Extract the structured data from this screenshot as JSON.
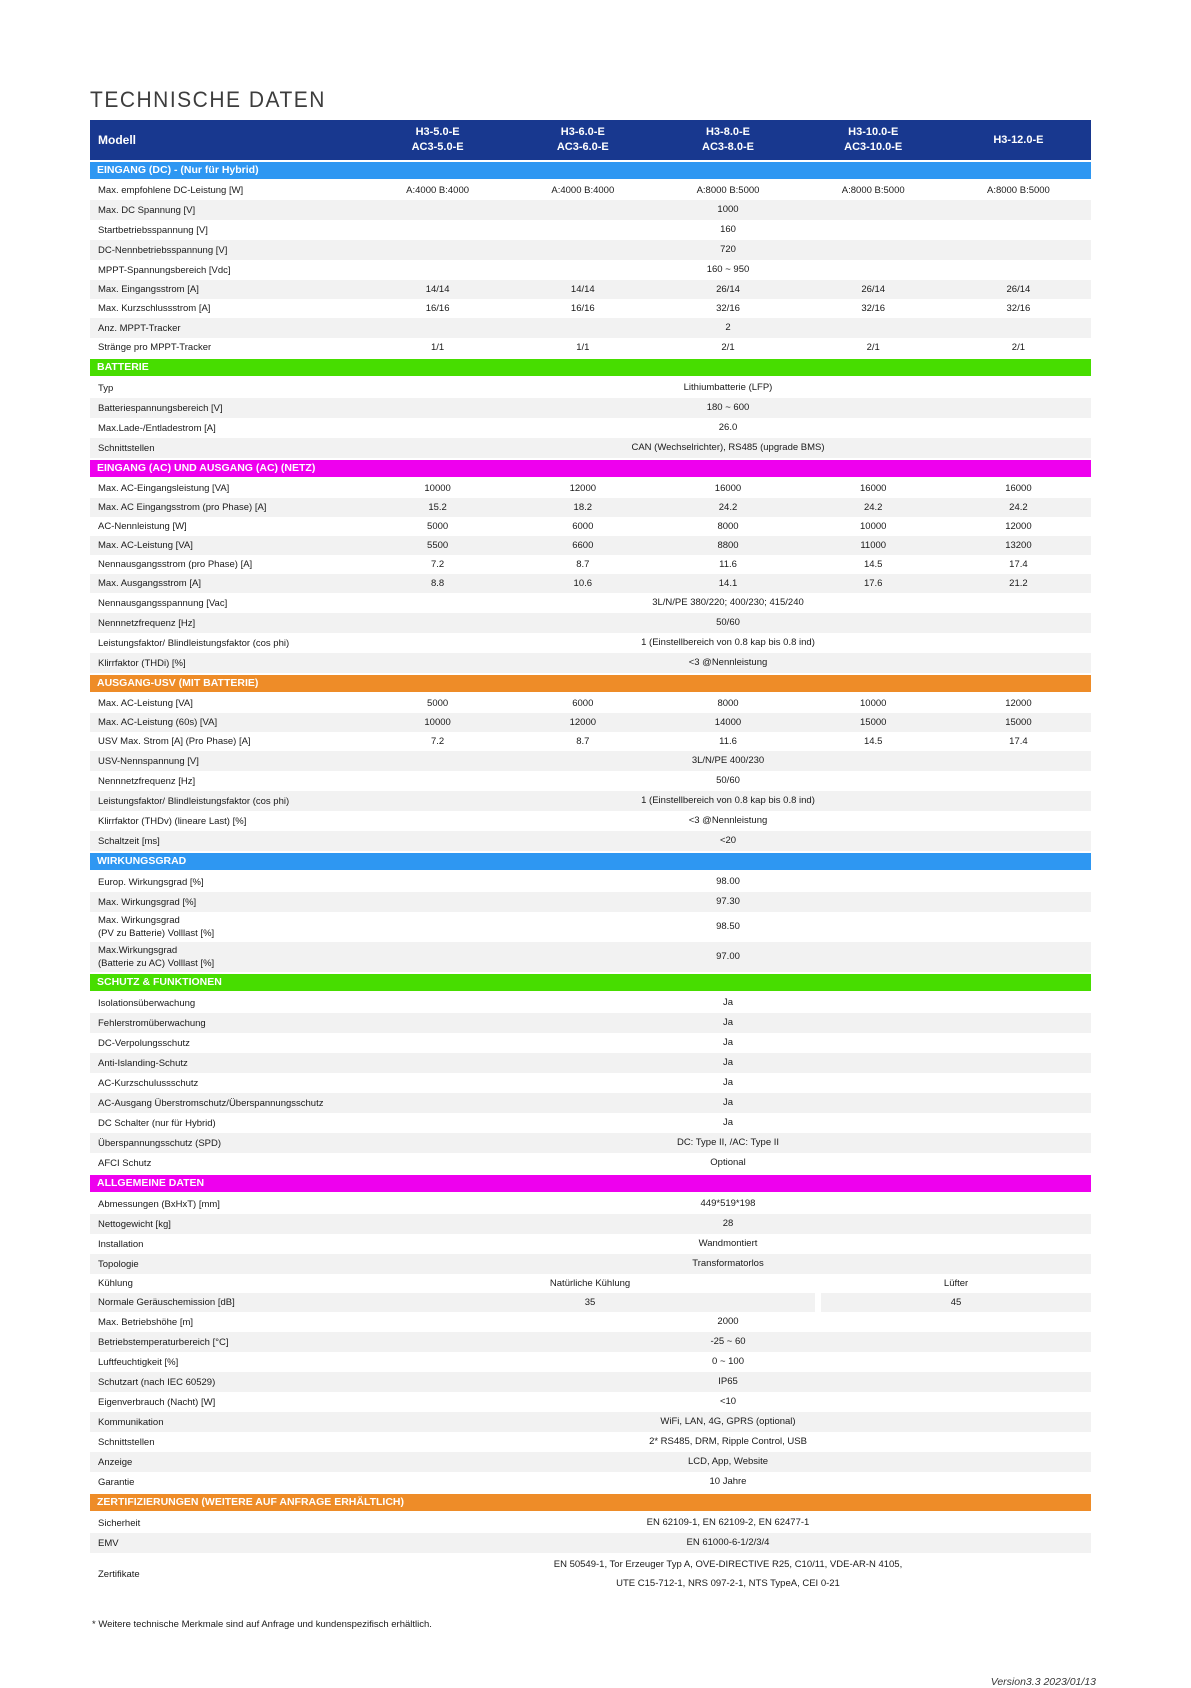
{
  "page": {
    "title": "TECHNISCHE DATEN",
    "footnote": "* Weitere technische Merkmale sind auf Anfrage und kundenspezifisch erhältlich.",
    "version": "Version3.3   2023/01/13"
  },
  "colors": {
    "header_navy": "#18388f",
    "section_blue": "#2e97f2",
    "section_green": "#47dd00",
    "section_magenta": "#ee00ee",
    "section_orange": "#ee8c28",
    "row_stripe": "#f2f2f2"
  },
  "table": {
    "model_label": "Modell",
    "models": [
      {
        "line1": "H3-5.0-E",
        "line2": "AC3-5.0-E"
      },
      {
        "line1": "H3-6.0-E",
        "line2": "AC3-6.0-E"
      },
      {
        "line1": "H3-8.0-E",
        "line2": "AC3-8.0-E"
      },
      {
        "line1": "H3-10.0-E",
        "line2": "AC3-10.0-E"
      },
      {
        "line1": "H3-12.0-E",
        "line2": ""
      }
    ],
    "sections": [
      {
        "title": "EINGANG (DC) - (Nur für Hybrid)",
        "color": "blue",
        "rows": [
          {
            "label": "Max. empfohlene DC-Leistung [W]",
            "cells": [
              "A:4000 B:4000",
              "A:4000 B:4000",
              "A:8000 B:5000",
              "A:8000 B:5000",
              "A:8000 B:5000"
            ]
          },
          {
            "label": "Max. DC Spannung [V]",
            "span": "1000"
          },
          {
            "label": "Startbetriebsspannung [V]",
            "span": "160"
          },
          {
            "label": "DC-Nennbetriebsspannung  [V]",
            "span": "720"
          },
          {
            "label": "MPPT-Spannungsbereich [Vdc]",
            "span": "160 ~ 950"
          },
          {
            "label": "Max. Eingangsstrom [A]",
            "cells": [
              "14/14",
              "14/14",
              "26/14",
              "26/14",
              "26/14"
            ]
          },
          {
            "label": "Max. Kurzschlussstrom [A]",
            "cells": [
              "16/16",
              "16/16",
              "32/16",
              "32/16",
              "32/16"
            ]
          },
          {
            "label": "Anz. MPPT-Tracker",
            "span": "2"
          },
          {
            "label": "Stränge pro MPPT-Tracker",
            "cells": [
              "1/1",
              "1/1",
              "2/1",
              "2/1",
              "2/1"
            ]
          }
        ]
      },
      {
        "title": "BATTERIE",
        "color": "green",
        "rows": [
          {
            "label": "Typ",
            "span": "Lithiumbatterie (LFP)"
          },
          {
            "label": "Batteriespannungsbereich [V]",
            "span": "180 ~ 600"
          },
          {
            "label": "Max.Lade-/Entladestrom [A]",
            "span": "26.0"
          },
          {
            "label": "Schnittstellen",
            "span": "CAN (Wechselrichter), RS485 (upgrade BMS)"
          }
        ]
      },
      {
        "title": "EINGANG (AC) UND AUSGANG (AC) (NETZ)",
        "color": "magenta",
        "rows": [
          {
            "label": "Max. AC-Eingangsleistung [VA]",
            "cells": [
              "10000",
              "12000",
              "16000",
              "16000",
              "16000"
            ]
          },
          {
            "label": "Max. AC Eingangsstrom (pro Phase) [A]",
            "cells": [
              "15.2",
              "18.2",
              "24.2",
              "24.2",
              "24.2"
            ]
          },
          {
            "label": "AC-Nennleistung [W]",
            "cells": [
              "5000",
              "6000",
              "8000",
              "10000",
              "12000"
            ]
          },
          {
            "label": "Max. AC-Leistung [VA]",
            "cells": [
              "5500",
              "6600",
              "8800",
              "11000",
              "13200"
            ]
          },
          {
            "label": "Nennausgangsstrom (pro Phase) [A]",
            "cells": [
              "7.2",
              "8.7",
              "11.6",
              "14.5",
              "17.4"
            ]
          },
          {
            "label": "Max. Ausgangsstrom [A]",
            "cells": [
              "8.8",
              "10.6",
              "14.1",
              "17.6",
              "21.2"
            ]
          },
          {
            "label": "Nennausgangsspannung  [Vac]",
            "span": "3L/N/PE  380/220; 400/230; 415/240"
          },
          {
            "label": "Nennnetzfrequenz [Hz]",
            "span": "50/60"
          },
          {
            "label": "Leistungsfaktor/ Blindleistungsfaktor (cos phi)",
            "span": "1 (Einstellbereich von 0.8 kap bis 0.8 ind)"
          },
          {
            "label": "Klirrfaktor (THDi)  [%]",
            "span": "<3 @Nennleistung"
          }
        ]
      },
      {
        "title": "AUSGANG-USV (MIT BATTERIE)",
        "color": "orange",
        "rows": [
          {
            "label": "Max. AC-Leistung [VA]",
            "cells": [
              "5000",
              "6000",
              "8000",
              "10000",
              "12000"
            ]
          },
          {
            "label": "Max. AC-Leistung (60s) [VA]",
            "cells": [
              "10000",
              "12000",
              "14000",
              "15000",
              "15000"
            ]
          },
          {
            "label": "USV Max. Strom [A] (Pro Phase) [A]",
            "cells": [
              "7.2",
              "8.7",
              "11.6",
              "14.5",
              "17.4"
            ]
          },
          {
            "label": "USV-Nennspannung [V]",
            "span": "3L/N/PE  400/230"
          },
          {
            "label": "Nennnetzfrequenz [Hz]",
            "span": "50/60"
          },
          {
            "label": "Leistungsfaktor/ Blindleistungsfaktor (cos phi)",
            "span": "1 (Einstellbereich von 0.8 kap bis 0.8 ind)"
          },
          {
            "label": "Klirrfaktor (THDv) (lineare Last)  [%]",
            "span": "<3 @Nennleistung"
          },
          {
            "label": "Schaltzeit [ms]",
            "span": "<20"
          }
        ]
      },
      {
        "title": "WIRKUNGSGRAD",
        "color": "blue",
        "rows": [
          {
            "label": "Europ. Wirkungsgrad [%]",
            "span": "98.00"
          },
          {
            "label": "Max. Wirkungsgrad [%]",
            "span": "97.30"
          },
          {
            "label": "Max. Wirkungsgrad",
            "label2": "(PV zu Batterie) Volllast [%]",
            "span": "98.50",
            "tall": true
          },
          {
            "label": "Max.Wirkungsgrad",
            "label2": " (Batterie zu AC) Volllast [%]",
            "span": "97.00",
            "tall": true
          }
        ]
      },
      {
        "title": "SCHUTZ & FUNKTIONEN",
        "color": "green",
        "rows": [
          {
            "label": "Isolationsüberwachung",
            "span": "Ja"
          },
          {
            "label": "Fehlerstromüberwachung",
            "span": "Ja"
          },
          {
            "label": "DC-Verpolungsschutz",
            "span": "Ja"
          },
          {
            "label": "Anti-Islanding-Schutz",
            "span": "Ja"
          },
          {
            "label": "AC-Kurzschulussschutz",
            "span": "Ja"
          },
          {
            "label": "AC-Ausgang Überstromschutz/Überspannungsschutz",
            "span": "Ja"
          },
          {
            "label": "DC Schalter (nur für Hybrid)",
            "span": "Ja"
          },
          {
            "label": "Überspannungsschutz (SPD)",
            "span": "DC: Type II, /AC: Type II"
          },
          {
            "label": "AFCI Schutz",
            "span": "Optional"
          }
        ]
      },
      {
        "title": "ALLGEMEINE DATEN",
        "color": "magenta",
        "rows": [
          {
            "label": "Abmessungen (BxHxT) [mm]",
            "span": "449*519*198"
          },
          {
            "label": "Nettogewicht [kg]",
            "span": "28"
          },
          {
            "label": "Installation",
            "span": "Wandmontiert"
          },
          {
            "label": "Topologie",
            "span": "Transformatorlos"
          },
          {
            "label": "Kühlung",
            "split": [
              "Natürliche Kühlung",
              "Lüfter"
            ]
          },
          {
            "label": "Normale Geräuschemission [dB]",
            "split": [
              "35",
              "45"
            ]
          },
          {
            "label": "Max. Betriebshöhe [m]",
            "span": "2000"
          },
          {
            "label": "Betriebstemperaturbereich [°C]",
            "span": "-25 ~ 60"
          },
          {
            "label": "Luftfeuchtigkeit [%]",
            "span": "0 ~ 100"
          },
          {
            "label": "Schutzart (nach IEC 60529)",
            "span": "IP65"
          },
          {
            "label": "Eigenverbrauch (Nacht) [W]",
            "span": "<10"
          },
          {
            "label": "Kommunikation",
            "span": "WiFi, LAN, 4G, GPRS (optional)"
          },
          {
            "label": "Schnittstellen",
            "span": "2* RS485, DRM, Ripple Control, USB"
          },
          {
            "label": "Anzeige",
            "span": "LCD, App, Website"
          },
          {
            "label": "Garantie",
            "span": "10 Jahre"
          }
        ]
      },
      {
        "title": "ZERTIFIZIERUNGEN (WEITERE AUF ANFRAGE ERHÄLTLICH)",
        "color": "orange",
        "rows": [
          {
            "label": "Sicherheit",
            "span": "EN 62109-1, EN 62109-2, EN 62477-1"
          },
          {
            "label": "EMV",
            "span": "EN 61000-6-1/2/3/4"
          },
          {
            "label": "Zertifikate",
            "span_lines": [
              "EN 50549-1, Tor Erzeuger Typ A, OVE-DIRECTIVE R25, C10/11, VDE-AR-N 4105,",
              "UTE C15-712-1, NRS 097-2-1, NTS TypeA, CEI 0-21"
            ],
            "xtall": true
          }
        ]
      }
    ]
  }
}
